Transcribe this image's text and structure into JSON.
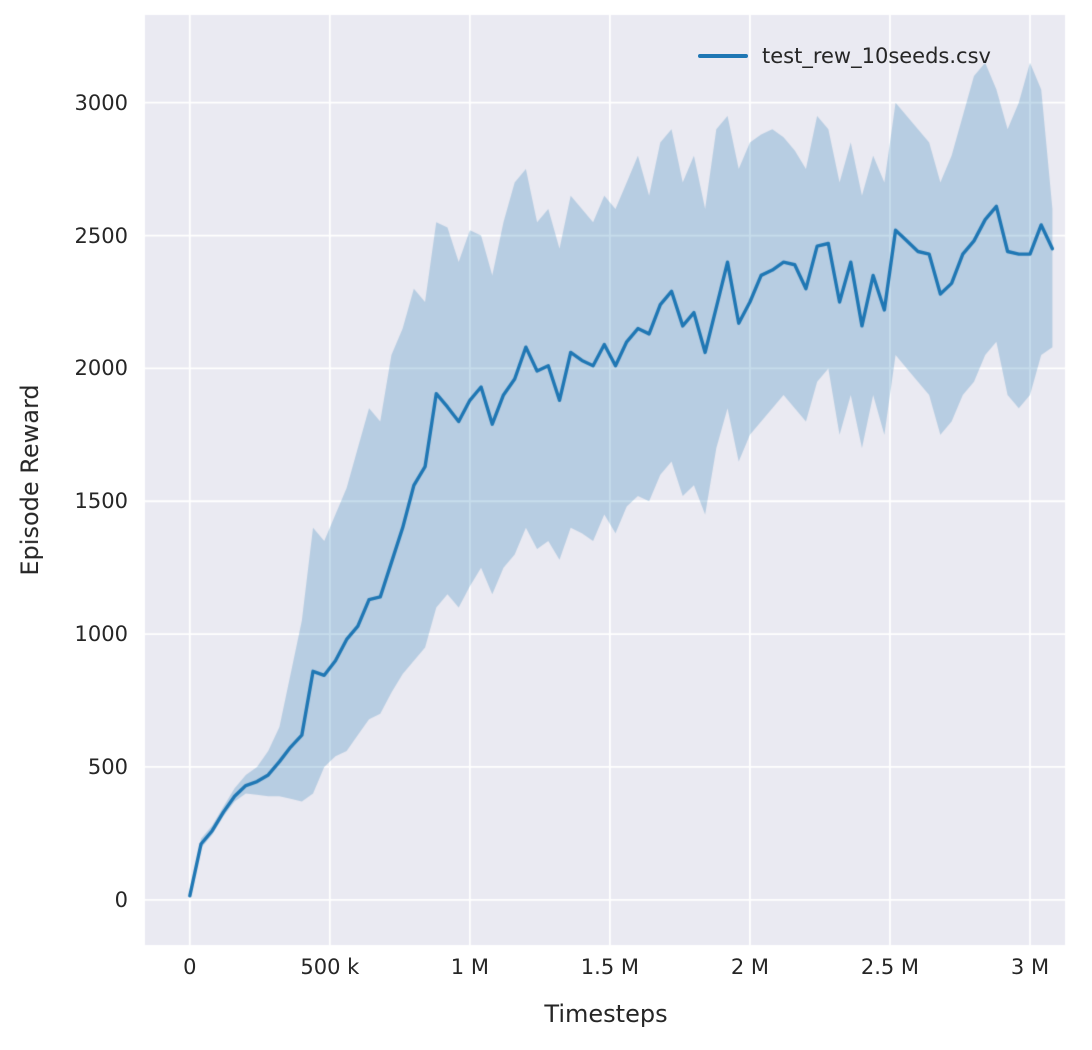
{
  "chart_data": {
    "type": "line",
    "title": "",
    "xlabel": "Timesteps",
    "ylabel": "Episode Reward",
    "legend": [
      "test_rew_10seeds.csv"
    ],
    "legend_position": "upper right",
    "grid": true,
    "xlim": [
      -160000,
      3125000
    ],
    "ylim": [
      -170,
      3330
    ],
    "xticks": {
      "values": [
        0,
        500000,
        1000000,
        1500000,
        2000000,
        2500000,
        3000000
      ],
      "labels": [
        "0",
        "500 k",
        "1 M",
        "1.5 M",
        "2 M",
        "2.5 M",
        "3 M"
      ]
    },
    "yticks": {
      "values": [
        0,
        500,
        1000,
        1500,
        2000,
        2500,
        3000
      ],
      "labels": [
        "0",
        "500",
        "1000",
        "1500",
        "2000",
        "2500",
        "3000"
      ]
    },
    "colors": {
      "figure_bg": "#ffffff",
      "panel_bg": "#eaeaf2",
      "grid": "#ffffff",
      "text": "#262626",
      "line": "#1f77b4",
      "band": "rgba(31,119,180,0.25)"
    },
    "series": [
      {
        "name": "test_rew_10seeds.csv",
        "color": "#1f77b4",
        "band_color": "rgba(31,119,180,0.25)",
        "x": [
          0,
          40000,
          80000,
          120000,
          160000,
          200000,
          240000,
          280000,
          320000,
          360000,
          400000,
          440000,
          480000,
          520000,
          560000,
          600000,
          640000,
          680000,
          720000,
          760000,
          800000,
          840000,
          880000,
          920000,
          960000,
          1000000,
          1040000,
          1080000,
          1120000,
          1160000,
          1200000,
          1240000,
          1280000,
          1320000,
          1360000,
          1400000,
          1440000,
          1480000,
          1520000,
          1560000,
          1600000,
          1640000,
          1680000,
          1720000,
          1760000,
          1800000,
          1840000,
          1880000,
          1920000,
          1960000,
          2000000,
          2040000,
          2080000,
          2120000,
          2160000,
          2200000,
          2240000,
          2280000,
          2320000,
          2360000,
          2400000,
          2440000,
          2480000,
          2520000,
          2560000,
          2600000,
          2640000,
          2680000,
          2720000,
          2760000,
          2800000,
          2840000,
          2880000,
          2920000,
          2960000,
          3000000,
          3040000,
          3080000
        ],
        "mean": [
          15,
          210,
          260,
          330,
          390,
          430,
          445,
          470,
          520,
          575,
          620,
          860,
          845,
          900,
          980,
          1030,
          1130,
          1140,
          1270,
          1400,
          1560,
          1630,
          1905,
          1855,
          1800,
          1880,
          1930,
          1790,
          1900,
          1960,
          2080,
          1990,
          2010,
          1880,
          2060,
          2030,
          2010,
          2090,
          2010,
          2100,
          2150,
          2130,
          2240,
          2290,
          2160,
          2210,
          2060,
          2230,
          2400,
          2170,
          2250,
          2350,
          2370,
          2400,
          2390,
          2300,
          2460,
          2470,
          2250,
          2400,
          2160,
          2350,
          2220,
          2520,
          2480,
          2440,
          2430,
          2280,
          2320,
          2430,
          2480,
          2560,
          2610,
          2440,
          2430,
          2430,
          2540,
          2450
        ],
        "lower": [
          10,
          195,
          245,
          315,
          370,
          400,
          395,
          390,
          390,
          380,
          370,
          400,
          500,
          540,
          560,
          620,
          680,
          700,
          780,
          850,
          900,
          950,
          1100,
          1150,
          1100,
          1180,
          1250,
          1150,
          1250,
          1300,
          1400,
          1320,
          1350,
          1280,
          1400,
          1380,
          1350,
          1450,
          1380,
          1480,
          1520,
          1500,
          1600,
          1650,
          1520,
          1560,
          1450,
          1700,
          1850,
          1650,
          1750,
          1800,
          1850,
          1900,
          1850,
          1800,
          1950,
          2000,
          1750,
          1900,
          1700,
          1900,
          1750,
          2050,
          2000,
          1950,
          1900,
          1750,
          1800,
          1900,
          1950,
          2050,
          2100,
          1900,
          1850,
          1900,
          2050,
          2080
        ],
        "upper": [
          20,
          230,
          280,
          350,
          420,
          470,
          500,
          560,
          650,
          850,
          1050,
          1400,
          1350,
          1450,
          1550,
          1700,
          1850,
          1800,
          2050,
          2150,
          2300,
          2250,
          2550,
          2530,
          2400,
          2520,
          2500,
          2350,
          2550,
          2700,
          2750,
          2550,
          2600,
          2450,
          2650,
          2600,
          2550,
          2650,
          2600,
          2700,
          2800,
          2650,
          2850,
          2900,
          2700,
          2800,
          2600,
          2900,
          2950,
          2750,
          2850,
          2880,
          2900,
          2870,
          2820,
          2750,
          2950,
          2900,
          2700,
          2850,
          2650,
          2800,
          2700,
          3000,
          2950,
          2900,
          2850,
          2700,
          2800,
          2950,
          3100,
          3150,
          3050,
          2900,
          3000,
          3150,
          3050,
          2600
        ]
      }
    ]
  }
}
